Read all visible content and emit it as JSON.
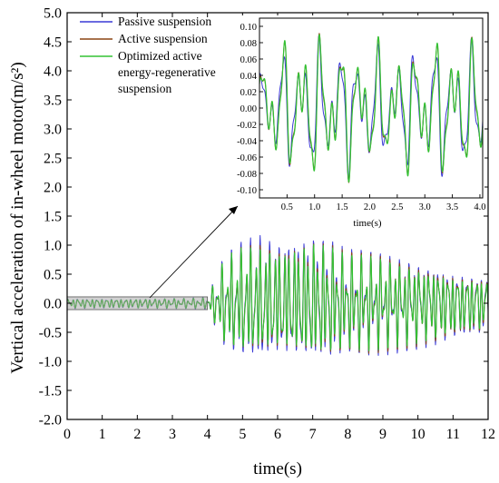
{
  "chart_data": [
    {
      "type": "line",
      "title": "",
      "xlabel": "time(s)",
      "ylabel": "Vertical acceleration of in-wheel motor(m/s²)",
      "xlim": [
        0,
        12
      ],
      "ylim": [
        -2.0,
        5.0
      ],
      "x_ticks": [
        "0",
        "1",
        "2",
        "3",
        "4",
        "5",
        "6",
        "7",
        "8",
        "9",
        "10",
        "11",
        "12"
      ],
      "y_ticks": [
        "-2.0",
        "-1.5",
        "-1.0",
        "-0.5",
        "0.0",
        "0.5",
        "1.0",
        "1.5",
        "2.0",
        "2.5",
        "3.0",
        "3.5",
        "4.0",
        "4.5",
        "5.0"
      ],
      "grid": false,
      "legend_position": "top-left",
      "zoom_region": {
        "x": [
          0,
          4
        ],
        "y": [
          -0.11,
          0.11
        ]
      },
      "series": [
        {
          "name": "Passive suspension",
          "color": "#3a3ad6",
          "x": [
            0,
            0.5,
            1,
            1.5,
            2,
            2.5,
            3,
            3.5,
            4,
            4.5,
            5,
            5.5,
            6,
            6.5,
            7,
            7.5,
            8,
            8.5,
            9,
            9.5,
            10,
            10.5,
            11,
            11.5,
            12
          ],
          "envelope": [
            0.1,
            0.1,
            0.1,
            0.1,
            0.1,
            0.1,
            0.1,
            0.1,
            0.12,
            0.9,
            1.15,
            1.3,
            1.2,
            1.25,
            1.3,
            1.2,
            1.0,
            1.0,
            0.95,
            0.9,
            0.85,
            0.8,
            0.7,
            0.65,
            0.6
          ]
        },
        {
          "name": "Active suspension",
          "color": "#8b4513",
          "x": [
            0,
            0.5,
            1,
            1.5,
            2,
            2.5,
            3,
            3.5,
            4,
            4.5,
            5,
            5.5,
            6,
            6.5,
            7,
            7.5,
            8,
            8.5,
            9,
            9.5,
            10,
            10.5,
            11,
            11.5,
            12
          ],
          "envelope": [
            0.09,
            0.09,
            0.09,
            0.09,
            0.09,
            0.09,
            0.09,
            0.09,
            0.1,
            0.85,
            1.05,
            1.15,
            1.1,
            1.15,
            1.2,
            1.1,
            0.95,
            0.95,
            0.9,
            0.85,
            0.8,
            0.75,
            0.65,
            0.6,
            0.55
          ]
        },
        {
          "name": "Optimized active energy-regenerative suspension",
          "color": "#33c233",
          "x": [
            0,
            0.5,
            1,
            1.5,
            2,
            2.5,
            3,
            3.5,
            4,
            4.5,
            5,
            5.5,
            6,
            6.5,
            7,
            7.5,
            8,
            8.5,
            9,
            9.5,
            10,
            10.5,
            11,
            11.5,
            12
          ],
          "envelope": [
            0.09,
            0.09,
            0.09,
            0.09,
            0.09,
            0.09,
            0.09,
            0.09,
            0.1,
            0.85,
            1.05,
            1.1,
            1.05,
            1.1,
            1.15,
            1.05,
            0.9,
            0.9,
            0.85,
            0.8,
            0.75,
            0.7,
            0.6,
            0.55,
            0.5
          ]
        }
      ]
    },
    {
      "type": "line",
      "title": "",
      "xlabel": "time(s)",
      "ylabel": "",
      "xlim": [
        0,
        4.05
      ],
      "ylim": [
        -0.11,
        0.11
      ],
      "x_ticks": [
        "0.5",
        "1.0",
        "1.5",
        "2.0",
        "2.5",
        "3.0",
        "3.5",
        "4.0"
      ],
      "y_ticks": [
        "-0.10",
        "-0.08",
        "-0.06",
        "-0.04",
        "-0.02",
        "0.00",
        "0.02",
        "0.04",
        "0.06",
        "0.08",
        "0.10"
      ],
      "series": [
        {
          "name": "Passive suspension",
          "color": "#3a3ad6",
          "x": [
            0,
            0.5,
            1,
            1.5,
            2,
            2.5,
            3,
            3.5,
            4
          ],
          "envelope": [
            0.06,
            0.08,
            0.09,
            0.085,
            0.08,
            0.075,
            0.085,
            0.09,
            0.08
          ]
        },
        {
          "name": "Active suspension",
          "color": "#8b4513",
          "x": [
            0,
            0.5,
            1,
            1.5,
            2,
            2.5,
            3,
            3.5,
            4
          ],
          "envelope": [
            0.07,
            0.09,
            0.1,
            0.09,
            0.085,
            0.08,
            0.09,
            0.095,
            0.085
          ]
        },
        {
          "name": "Optimized active energy-regenerative suspension",
          "color": "#33c233",
          "x": [
            0,
            0.5,
            1,
            1.5,
            2,
            2.5,
            3,
            3.5,
            4
          ],
          "envelope": [
            0.07,
            0.09,
            0.1,
            0.09,
            0.085,
            0.08,
            0.09,
            0.095,
            0.085
          ]
        }
      ]
    }
  ],
  "legend": {
    "items": [
      {
        "lines": [
          "Passive suspension"
        ],
        "color": "#3a3ad6"
      },
      {
        "lines": [
          "Active suspension"
        ],
        "color": "#8b4513"
      },
      {
        "lines": [
          "Optimized active",
          "energy-regenerative",
          "suspension"
        ],
        "color": "#33c233"
      }
    ]
  }
}
